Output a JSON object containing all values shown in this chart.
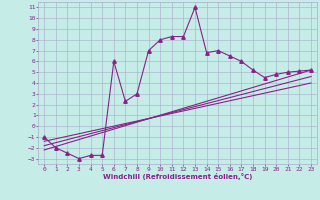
{
  "xlabel": "Windchill (Refroidissement éolien,°C)",
  "bg_color": "#c5ece6",
  "grid_color": "#aaaacc",
  "line_color": "#882288",
  "xlim": [
    -0.5,
    23.5
  ],
  "ylim": [
    -3.5,
    11.5
  ],
  "xticks": [
    0,
    1,
    2,
    3,
    4,
    5,
    6,
    7,
    8,
    9,
    10,
    11,
    12,
    13,
    14,
    15,
    16,
    17,
    18,
    19,
    20,
    21,
    22,
    23
  ],
  "yticks": [
    -3,
    -2,
    -1,
    0,
    1,
    2,
    3,
    4,
    5,
    6,
    7,
    8,
    9,
    10,
    11
  ],
  "curve_x": [
    0,
    1,
    2,
    3,
    4,
    5,
    6,
    7,
    8,
    9,
    10,
    11,
    12,
    13,
    14,
    15,
    16,
    17,
    18,
    19,
    20,
    21,
    22,
    23
  ],
  "curve_y": [
    -1,
    -2,
    -2.5,
    -3,
    -2.7,
    -2.7,
    6,
    2.3,
    3,
    7,
    8,
    8.3,
    8.3,
    11,
    6.8,
    7,
    6.5,
    6,
    5.2,
    4.5,
    4.8,
    5,
    5.1,
    5.2
  ],
  "line1_x": [
    0,
    23
  ],
  "line1_y": [
    -2.2,
    5.2
  ],
  "line2_x": [
    0,
    23
  ],
  "line2_y": [
    -1.8,
    4.6
  ],
  "line3_x": [
    0,
    23
  ],
  "line3_y": [
    -1.4,
    4.0
  ]
}
